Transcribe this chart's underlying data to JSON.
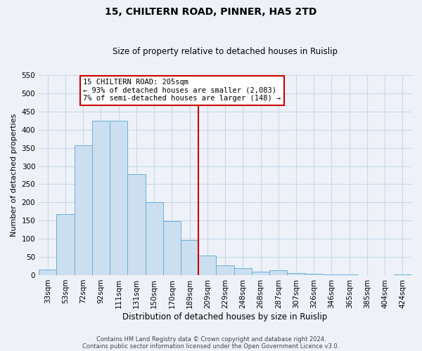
{
  "title": "15, CHILTERN ROAD, PINNER, HA5 2TD",
  "subtitle": "Size of property relative to detached houses in Ruislip",
  "xlabel": "Distribution of detached houses by size in Ruislip",
  "ylabel": "Number of detached properties",
  "bar_labels": [
    "33sqm",
    "53sqm",
    "72sqm",
    "92sqm",
    "111sqm",
    "131sqm",
    "150sqm",
    "170sqm",
    "189sqm",
    "209sqm",
    "229sqm",
    "248sqm",
    "268sqm",
    "287sqm",
    "307sqm",
    "326sqm",
    "346sqm",
    "365sqm",
    "385sqm",
    "404sqm",
    "424sqm"
  ],
  "bar_heights": [
    15,
    168,
    357,
    425,
    425,
    277,
    200,
    149,
    97,
    54,
    27,
    20,
    10,
    13,
    5,
    4,
    2,
    1,
    0,
    0,
    2
  ],
  "bar_color": "#CCDFF0",
  "bar_edge_color": "#6AAED6",
  "vline_x_index": 9,
  "vline_color": "#CC0000",
  "ylim": [
    0,
    550
  ],
  "yticks": [
    0,
    50,
    100,
    150,
    200,
    250,
    300,
    350,
    400,
    450,
    500,
    550
  ],
  "annotation_title": "15 CHILTERN ROAD: 205sqm",
  "annotation_line1": "← 93% of detached houses are smaller (2,083)",
  "annotation_line2": "7% of semi-detached houses are larger (148) →",
  "annotation_box_color": "#CC0000",
  "footer1": "Contains HM Land Registry data © Crown copyright and database right 2024.",
  "footer2": "Contains public sector information licensed under the Open Government Licence v3.0.",
  "grid_color": "#C8D8E8",
  "background_color": "#EEF2F8",
  "title_fontsize": 10,
  "subtitle_fontsize": 8.5,
  "ylabel_fontsize": 8,
  "xlabel_fontsize": 8.5,
  "tick_labelsize": 7.5,
  "annotation_fontsize": 7.5,
  "footer_fontsize": 6
}
